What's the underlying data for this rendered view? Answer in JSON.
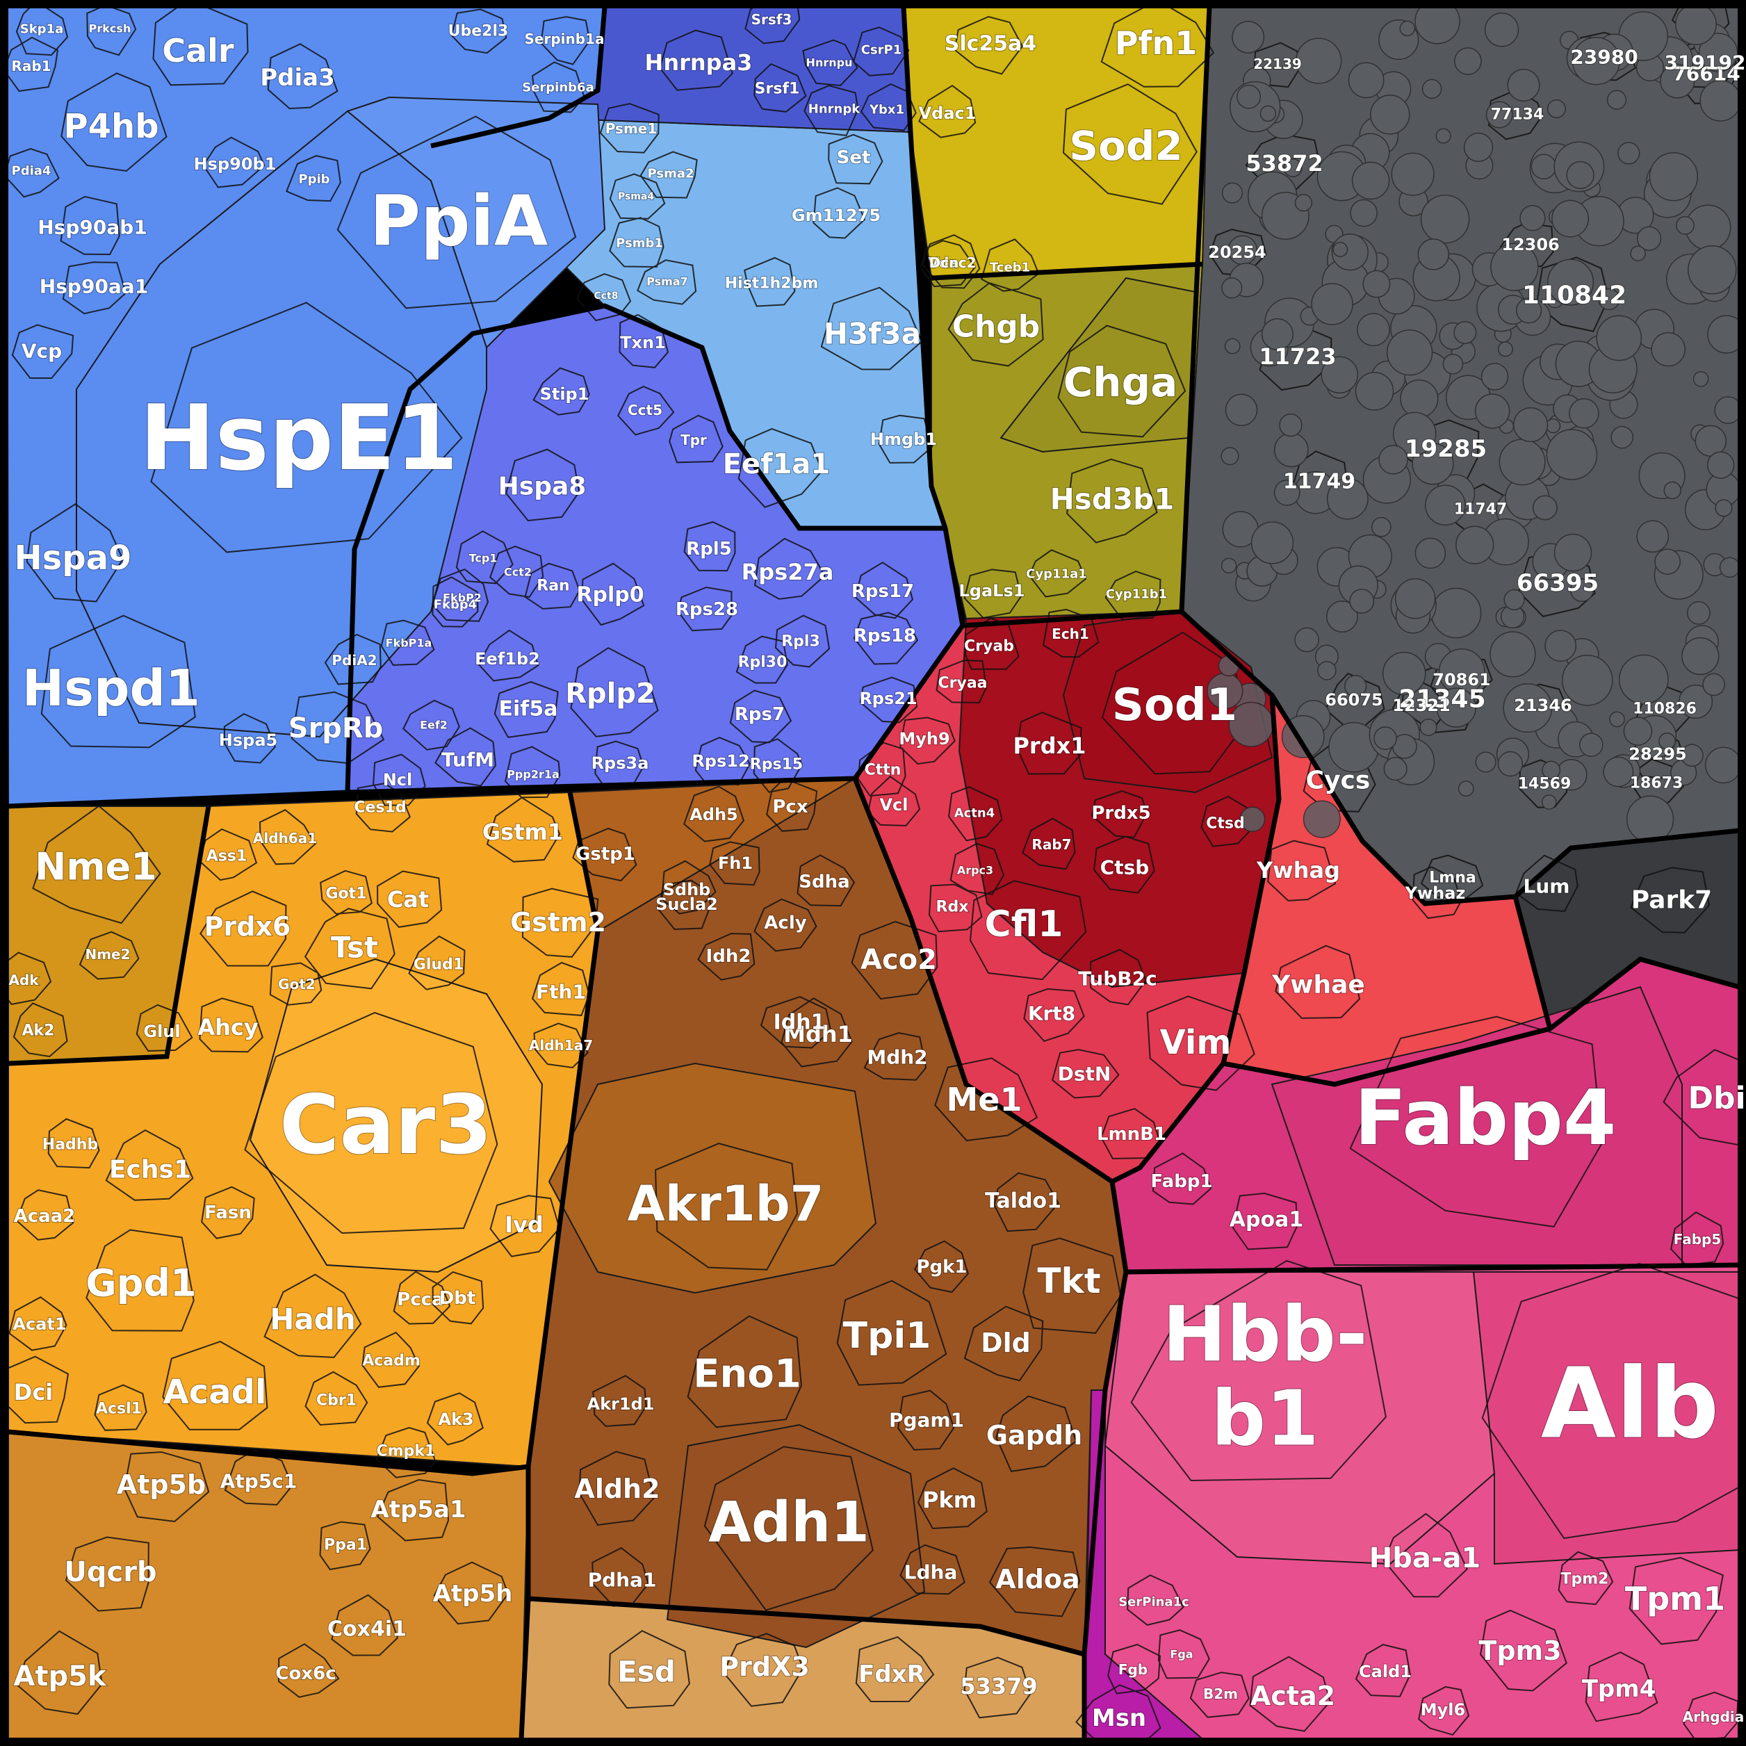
{
  "colors": {
    "blue_light": "#5b8cf0",
    "blue_sky": "#7db6ee",
    "blue_indigo": "#4a58d0",
    "blue_violet": "#6672ee",
    "olive_yellow": "#d3b712",
    "olive": "#a29a20",
    "gray": "#55585c",
    "red_dark": "#a50f1e",
    "red": "#e23a52",
    "red_orange": "#ee4a50",
    "pink": "#d8357c",
    "magenta": "#e84f8e",
    "purple": "#b81ea8",
    "gold": "#f5a623",
    "orange": "#d48a2a",
    "brown": "#b0621e",
    "brown_dark": "#9a5422",
    "tan": "#d9a05a",
    "rust": "#c85020"
  },
  "labels": [
    "HspE1",
    "PpiA",
    "Hspd1",
    "Hspa9",
    "Hspa8",
    "P4hb",
    "Calr",
    "Pdia3",
    "Hsp90ab1",
    "Hsp90aa1",
    "Hsp90b1",
    "Vcp",
    "SrpRb",
    "Hspa5",
    "PdiA2",
    "Stip1",
    "Txn1",
    "Cct5",
    "Psmb1",
    "Psme1",
    "Psma2",
    "Psma4",
    "Psma7",
    "Serpinb1a",
    "Serpinb6a",
    "Ube2l3",
    "Skp1a",
    "Prkcsh",
    "Rab1",
    "Pdia4",
    "Ppib",
    "Fkbp4",
    "FkbP2",
    "FkbP1a",
    "Tcp1",
    "Cct2",
    "Cct8",
    "Ran",
    "Ncl",
    "Eif5a",
    "Eef1b2",
    "TufM",
    "Eef2",
    "Ppp2r1a",
    "Eef1a1",
    "Tpr",
    "Rplp0",
    "Rplp2",
    "Rps28",
    "Rpl5",
    "Rps27a",
    "Rps17",
    "Rps18",
    "Rps21",
    "Rps7",
    "Rps3a",
    "Rps12",
    "Rps15",
    "Rpl30",
    "Rpl3",
    "Hnrnpa3",
    "Srsf3",
    "Srsf1",
    "Hnrnpk",
    "Hnrnpu",
    "CsrP1",
    "Ybx1",
    "Set",
    "Gm11275",
    "Hist1h2bm",
    "H3f3a",
    "Hmgb1",
    "Slc25a4",
    "Pfn1",
    "Sod2",
    "Vdac1",
    "Vdac2",
    "Dcn",
    "Tceb1",
    "Chgb",
    "Chga",
    "Hsd3b1",
    "LgaLs1",
    "Cyp11a1",
    "Cyp11b1",
    "Sod1",
    "Prdx1",
    "Prdx5",
    "Ctsb",
    "Ctsd",
    "Rab7",
    "Cryab",
    "Cryaa",
    "Ech1",
    "Myh9",
    "Cttn",
    "Vcl",
    "Actn4",
    "Cfl1",
    "Rdx",
    "Arpc3",
    "TubB2c",
    "Krt8",
    "Vim",
    "DstN",
    "LmnB1",
    "Cycs",
    "Ywhag",
    "Ywhaz",
    "Ywhae",
    "Lmna",
    "Lum",
    "Park7",
    "Fabp4",
    "Dbi",
    "Fabp1",
    "Apoa1",
    "Fabp5",
    "Hbb-b1",
    "Alb",
    "Hba-a1",
    "Tpm1",
    "Tpm2",
    "Tpm3",
    "Tpm4",
    "Acta2",
    "Cald1",
    "Myl6",
    "Msn",
    "SerPina1c",
    "Fga",
    "Fgb",
    "B2m",
    "Arhgdia",
    "Nme1",
    "Nme2",
    "Adk",
    "Ak2",
    "Car3",
    "Prdx6",
    "Tst",
    "Cat",
    "Got1",
    "Glud1",
    "Got2",
    "Ahcy",
    "Glul",
    "Ass1",
    "Aldh6a1",
    "Ces1d",
    "Gstm1",
    "Gstp1",
    "Gstm2",
    "Fth1",
    "Aldh1a7",
    "Ivd",
    "Pcca",
    "Dbt",
    "Echs1",
    "Hadhb",
    "Acaa2",
    "Gpd1",
    "Acat1",
    "Hadh",
    "Acadl",
    "Acadm",
    "Dci",
    "Acsl1",
    "Cbr1",
    "Fasn",
    "Ak3",
    "Cmpk1",
    "Atp5b",
    "Atp5c1",
    "Atp5a1",
    "Atp5h",
    "Uqcrb",
    "Atp5k",
    "Cox4i1",
    "Cox6c",
    "Ppa1",
    "Akr1b7",
    "Adh1",
    "Eno1",
    "Tpi1",
    "Aldh2",
    "Pgam1",
    "Gapdh",
    "Pkm",
    "Aldoa",
    "Ldha",
    "Dld",
    "Pgk1",
    "Tkt",
    "Taldo1",
    "Me1",
    "Aco2",
    "Mdh1",
    "Mdh2",
    "Idh1",
    "Idh2",
    "Acly",
    "Sdhb",
    "Sdha",
    "Sucla2",
    "Fh1",
    "Pcx",
    "Adh5",
    "Pdha1",
    "Akr1d1",
    "Esd",
    "PrdX3",
    "FdxR",
    "53379",
    "110842",
    "23980",
    "76614",
    "53872",
    "22139",
    "77134",
    "12306",
    "11723",
    "20254",
    "19285",
    "11749",
    "11747",
    "66395",
    "21345",
    "110826",
    "21346",
    "14569",
    "18673",
    "28295",
    "66075",
    "12321",
    "70861",
    "319192"
  ]
}
